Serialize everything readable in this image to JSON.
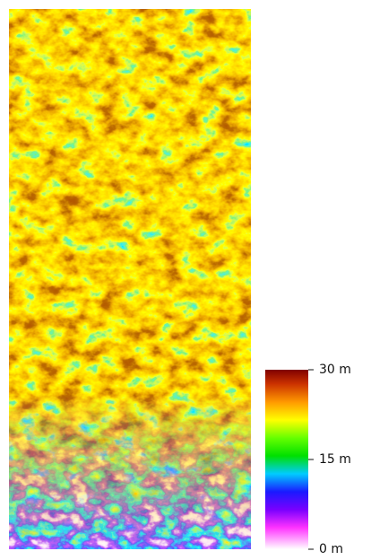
{
  "colorbar": {
    "range": [
      0,
      30
    ],
    "ticks": [
      {
        "value": 30,
        "label": "30 m"
      },
      {
        "value": 15,
        "label": "15 m"
      },
      {
        "value": 0,
        "label": "0 m"
      }
    ]
  }
}
